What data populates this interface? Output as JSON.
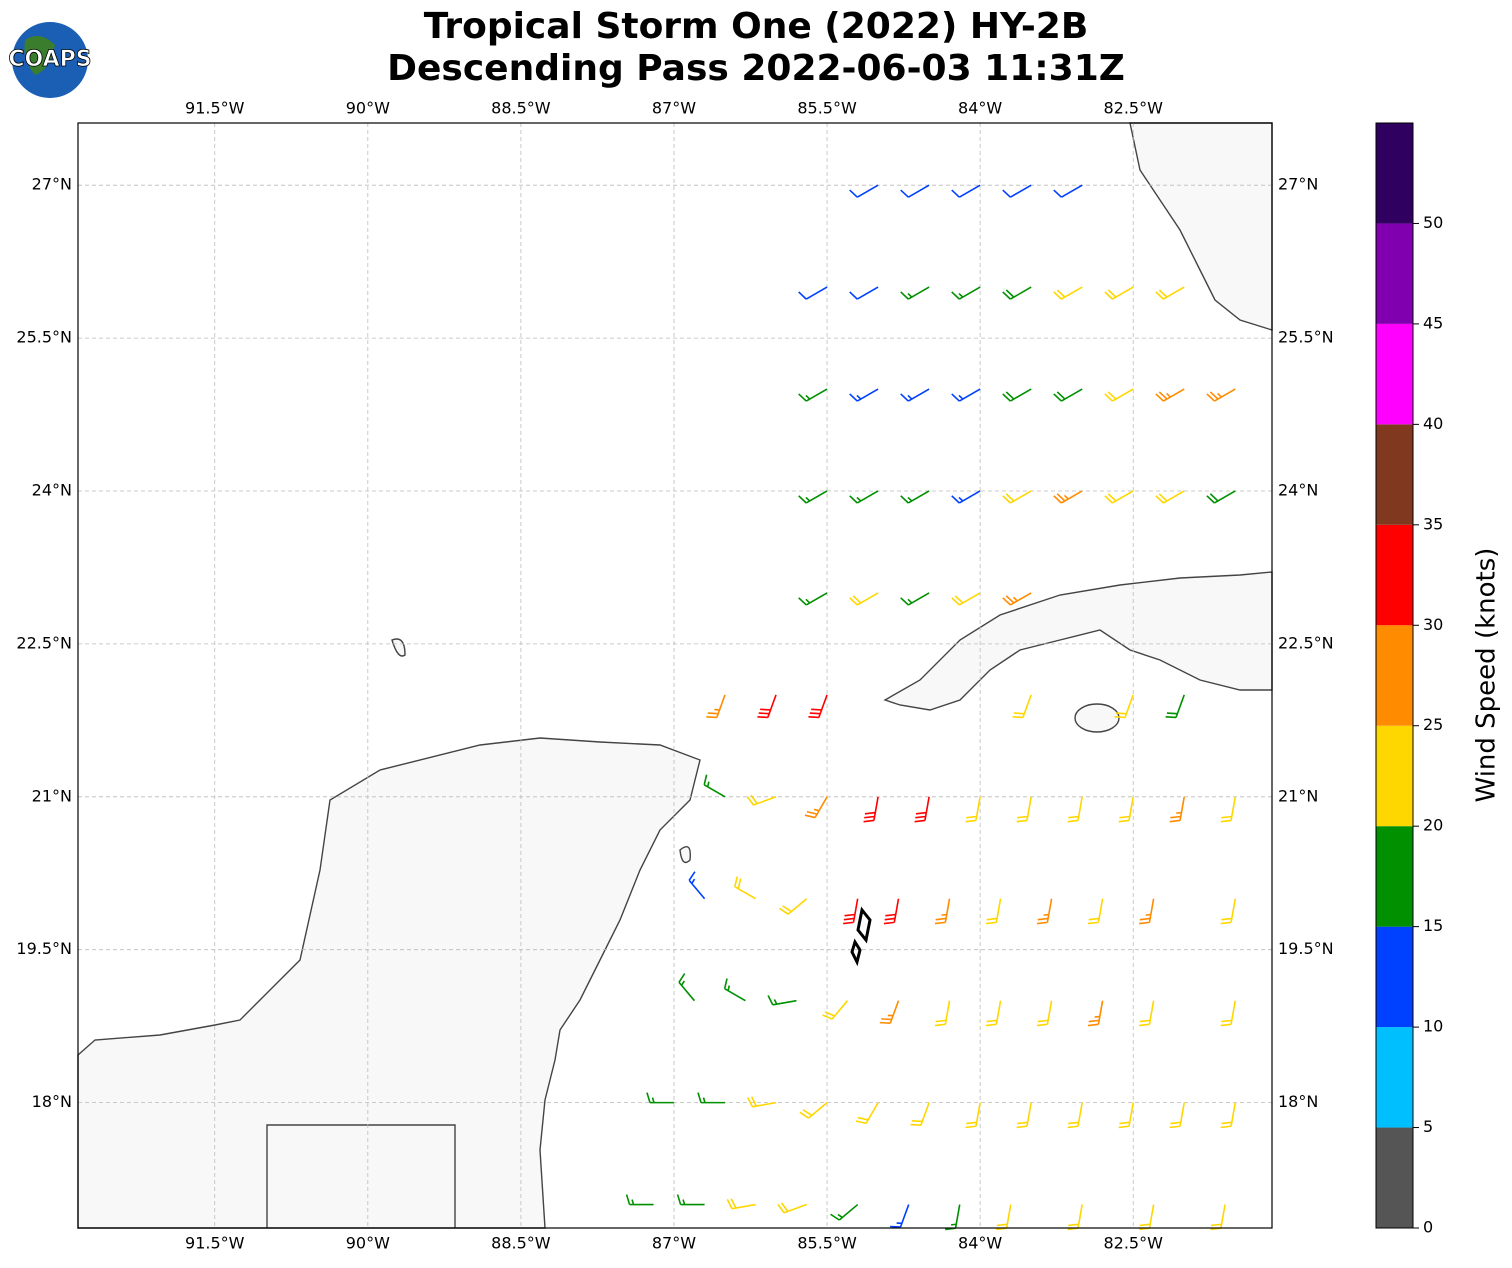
{
  "map": {
    "title": [
      "Tropical Storm One (2022) HY-2B",
      "Descending Pass 2022-06-03 11:31Z"
    ],
    "logo": "COAPS",
    "xlim": [
      -92.84,
      -81.14
    ],
    "ylim": [
      16.77,
      27.61
    ],
    "xticks": [
      {
        "value": -91.5,
        "label": "91.5°W"
      },
      {
        "value": -90,
        "label": "90°W"
      },
      {
        "value": -88.5,
        "label": "88.5°W"
      },
      {
        "value": -87,
        "label": "87°W"
      },
      {
        "value": -85.5,
        "label": "85.5°W"
      },
      {
        "value": -84,
        "label": "84°W"
      },
      {
        "value": -82.5,
        "label": "82.5°W"
      }
    ],
    "yticks": [
      {
        "value": 18,
        "label": "18°N"
      },
      {
        "value": 19.5,
        "label": "19.5°N"
      },
      {
        "value": 21,
        "label": "21°N"
      },
      {
        "value": 22.5,
        "label": "22.5°N"
      },
      {
        "value": 24,
        "label": "24°N"
      },
      {
        "value": 25.5,
        "label": "25.5°N"
      },
      {
        "value": 27,
        "label": "27°N"
      }
    ],
    "grid": true,
    "colorbar": {
      "label": "Wind Speed (knots)",
      "lim": [
        0,
        55
      ],
      "ticks": [
        0,
        5,
        10,
        15,
        20,
        25,
        30,
        35,
        40,
        45,
        50
      ],
      "bounds": [
        0,
        5,
        10,
        15,
        20,
        25,
        30,
        35,
        40,
        45,
        50,
        55
      ],
      "colors": [
        "#555555",
        "#00bfff",
        "#0040ff",
        "#009000",
        "#ffd700",
        "#ff8c00",
        "#ff0000",
        "#80391f",
        "#ff00ff",
        "#8000b0",
        "#300060"
      ]
    },
    "barbs": {
      "lon": [
        -85,
        -84.5,
        -84,
        -83.5,
        -83,
        -85.5,
        -85,
        -84.5,
        -84,
        -83.5,
        -83,
        -82.5,
        -82,
        -85.5,
        -85,
        -84.5,
        -84,
        -83.5,
        -83,
        -82.5,
        -82,
        -81.5,
        -85.5,
        -85,
        -84.5,
        -84,
        -83.5,
        -83,
        -82.5,
        -82,
        -81.5,
        -85.5,
        -85,
        -84.5,
        -84,
        -83.5,
        -86.5,
        -86,
        -85.5,
        -83.5,
        -82.5,
        -82,
        -86.5,
        -86,
        -85.5,
        -85,
        -84.5,
        -84,
        -83.5,
        -83,
        -82.5,
        -82,
        -81.5,
        -86.7,
        -86.2,
        -85.7,
        -85.2,
        -84.8,
        -84.3,
        -83.8,
        -83.3,
        -82.8,
        -82.3,
        -81.5,
        -86.8,
        -86.3,
        -85.8,
        -85.3,
        -84.8,
        -84.3,
        -83.8,
        -83.3,
        -82.8,
        -82.3,
        -81.5,
        -87,
        -86.5,
        -86,
        -85.5,
        -85,
        -84.5,
        -84,
        -83.5,
        -83,
        -82.5,
        -82,
        -81.5,
        -87.2,
        -86.7,
        -86.2,
        -85.7,
        -85.2,
        -84.7,
        -84.2,
        -83.7,
        -83,
        -82.3,
        -81.6
      ],
      "lat": [
        27,
        27,
        27,
        27,
        27,
        26,
        26,
        26,
        26,
        26,
        26,
        26,
        26,
        25,
        25,
        25,
        25,
        25,
        25,
        25,
        25,
        25,
        24,
        24,
        24,
        24,
        24,
        24,
        24,
        24,
        24,
        23,
        23,
        23,
        23,
        23,
        22,
        22,
        22,
        22,
        22,
        22,
        21,
        21,
        21,
        21,
        21,
        21,
        21,
        21,
        21,
        21,
        21,
        20,
        20,
        20,
        20,
        20,
        20,
        20,
        20,
        20,
        20,
        20,
        19,
        19,
        19,
        19,
        19,
        19,
        19,
        19,
        19,
        19,
        19,
        18,
        18,
        18,
        18,
        18,
        18,
        18,
        18,
        18,
        18,
        18,
        18,
        17,
        17,
        17,
        17,
        17,
        17,
        17,
        17,
        17,
        17,
        17
      ],
      "speed": [
        12,
        12,
        12,
        12,
        12,
        12,
        12,
        15,
        17,
        18,
        22,
        22,
        22,
        17,
        13,
        13,
        13,
        18,
        18,
        22,
        26,
        27,
        17,
        17,
        17,
        13,
        22,
        27,
        22,
        22,
        18,
        17,
        22,
        17,
        22,
        27,
        27,
        32,
        32,
        22,
        22,
        18,
        17,
        22,
        27,
        32,
        32,
        22,
        22,
        22,
        22,
        27,
        22,
        13,
        22,
        22,
        32,
        32,
        27,
        22,
        27,
        22,
        27,
        22,
        17,
        17,
        17,
        22,
        27,
        22,
        22,
        22,
        27,
        22,
        22,
        17,
        17,
        22,
        22,
        22,
        22,
        22,
        22,
        22,
        22,
        22,
        22,
        17,
        17,
        22,
        22,
        17,
        13,
        17,
        22,
        22,
        22,
        22
      ],
      "direction": [
        240,
        240,
        240,
        240,
        240,
        240,
        240,
        240,
        240,
        240,
        240,
        240,
        240,
        240,
        240,
        240,
        240,
        240,
        240,
        240,
        240,
        240,
        240,
        240,
        240,
        240,
        240,
        240,
        240,
        240,
        240,
        240,
        240,
        240,
        240,
        240,
        200,
        200,
        200,
        200,
        200,
        200,
        300,
        250,
        210,
        190,
        190,
        190,
        190,
        190,
        190,
        190,
        190,
        320,
        300,
        230,
        190,
        190,
        190,
        190,
        190,
        190,
        190,
        190,
        320,
        300,
        260,
        220,
        200,
        190,
        190,
        190,
        190,
        190,
        190,
        270,
        270,
        260,
        230,
        210,
        200,
        190,
        190,
        190,
        190,
        190,
        190,
        270,
        270,
        260,
        250,
        230,
        200,
        190,
        190,
        190,
        190,
        190
      ]
    }
  }
}
